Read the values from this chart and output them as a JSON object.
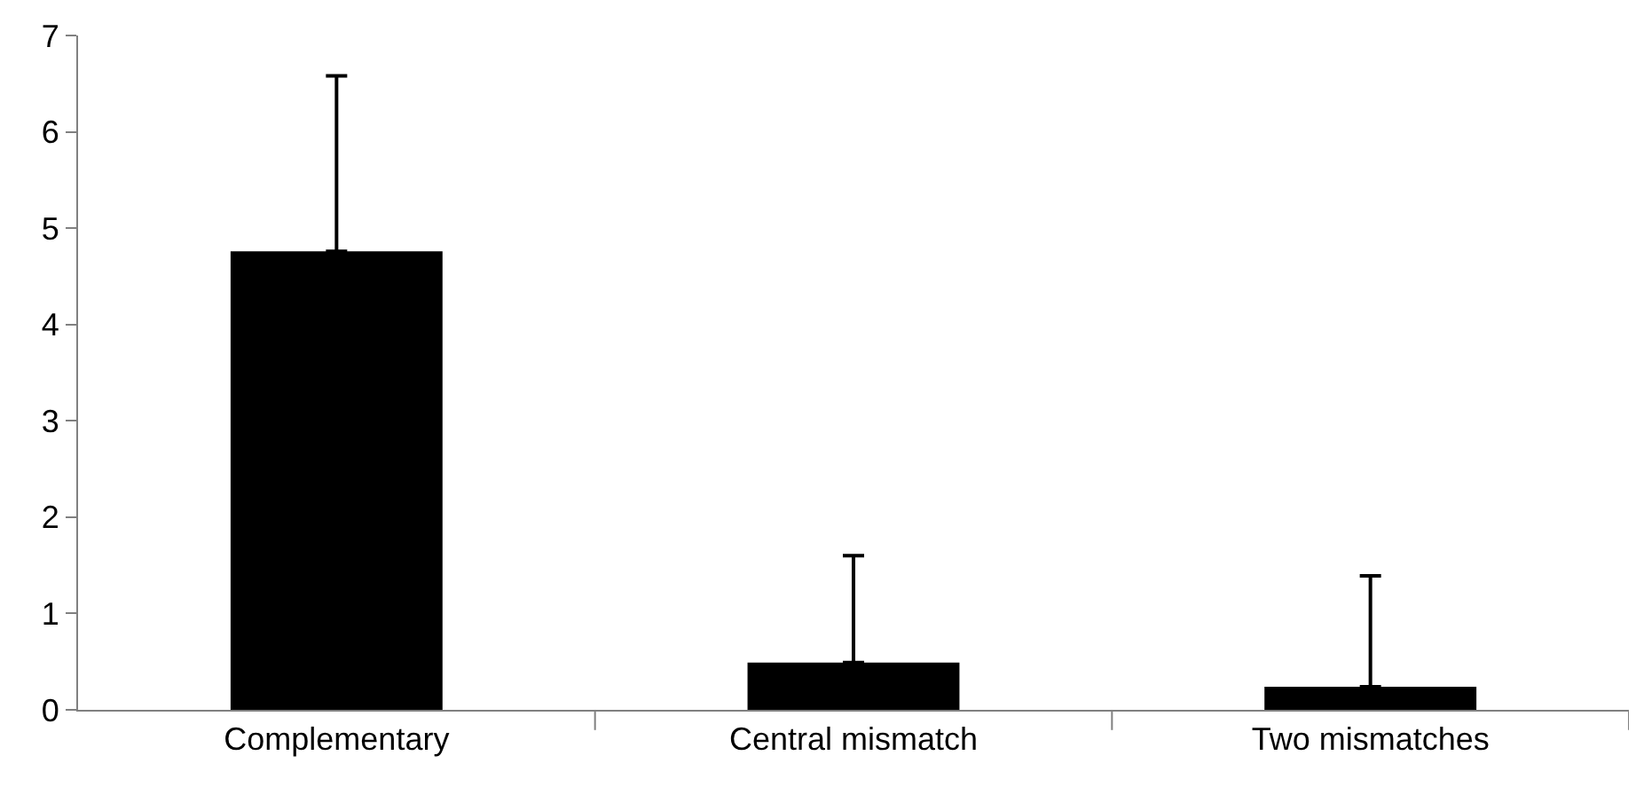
{
  "chart_data": {
    "type": "bar",
    "categories": [
      "Complementary",
      "Central mismatch",
      "Two mismatches"
    ],
    "values": [
      4.76,
      0.49,
      0.24
    ],
    "errors": [
      [
        4.76,
        6.58
      ],
      [
        0.49,
        1.6
      ],
      [
        0.24,
        1.39
      ]
    ],
    "color": "#000000",
    "ylim": [
      0,
      7
    ],
    "yticks": [
      0,
      1,
      2,
      3,
      4,
      5,
      6,
      7
    ],
    "grid": false
  }
}
